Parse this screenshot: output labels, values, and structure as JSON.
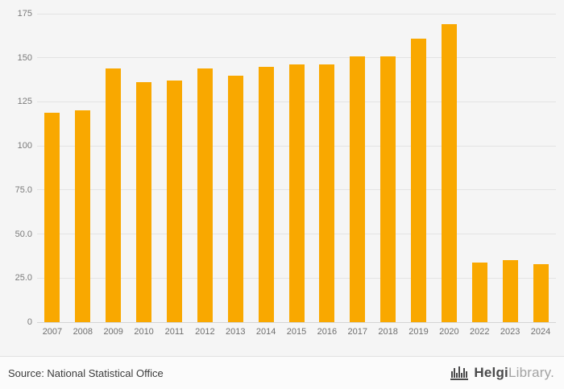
{
  "chart_data": {
    "type": "bar",
    "categories": [
      "2007",
      "2008",
      "2009",
      "2010",
      "2011",
      "2012",
      "2013",
      "2014",
      "2015",
      "2016",
      "2017",
      "2018",
      "2019",
      "2020",
      "2022",
      "2023",
      "2024"
    ],
    "values": [
      119,
      120,
      144,
      136,
      137,
      144,
      140,
      145,
      146,
      146,
      151,
      151,
      161,
      169,
      34,
      35,
      33
    ],
    "title": "",
    "xlabel": "",
    "ylabel": "",
    "ylim": [
      0,
      175
    ],
    "yticks": [
      0,
      25,
      50,
      75,
      100,
      125,
      150,
      175
    ],
    "ytick_labels": [
      "0",
      "25.0",
      "50.0",
      "75.0",
      "100",
      "125",
      "150",
      "175"
    ],
    "grid": true,
    "legend": "none",
    "bar_color": "#F9A800"
  },
  "footer": {
    "source": "Source: National Statistical Office",
    "logo_primary": "Helgi",
    "logo_secondary": "Library."
  },
  "colors": {
    "background": "#f5f5f5",
    "footer_background": "#fbfbfb",
    "gridline": "#e3e3e3",
    "tick_text": "#7a7a7a",
    "bar": "#F9A800"
  }
}
